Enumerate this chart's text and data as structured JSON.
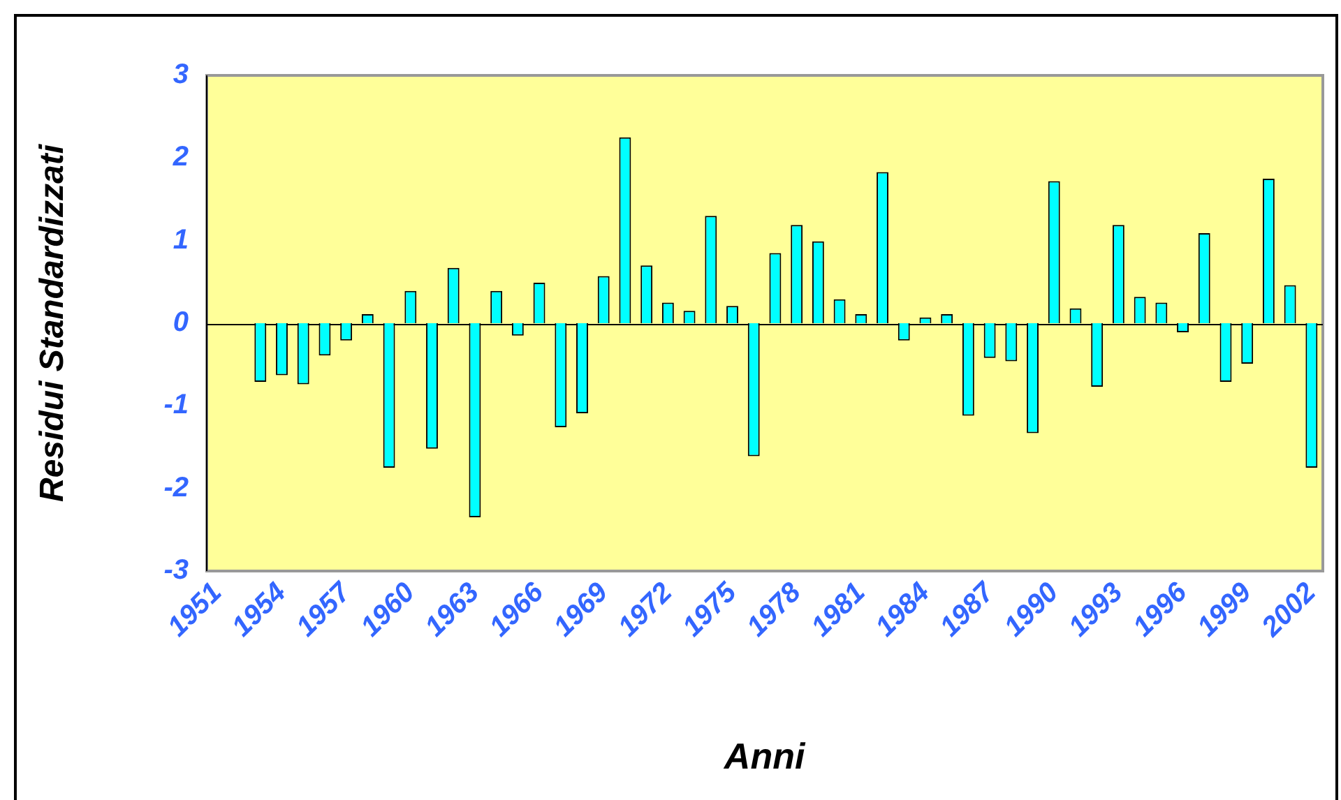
{
  "chart_data": {
    "type": "bar",
    "xlabel": "Anni",
    "ylabel": "Residui Standardizzati",
    "categories": [
      "1951",
      null,
      null,
      "1954",
      null,
      null,
      "1957",
      null,
      null,
      "1960",
      null,
      null,
      "1963",
      null,
      null,
      "1966",
      null,
      null,
      "1969",
      null,
      null,
      "1972",
      null,
      null,
      "1975",
      null,
      null,
      "1978",
      null,
      null,
      "1981",
      null,
      null,
      "1984",
      null,
      null,
      "1987",
      null,
      null,
      "1990",
      null,
      null,
      "1993",
      null,
      null,
      "1996",
      null,
      null,
      "1999",
      null,
      null,
      "2002"
    ],
    "values": [
      null,
      null,
      -0.71,
      -0.63,
      -0.74,
      -0.39,
      -0.21,
      0.11,
      -1.75,
      0.39,
      -1.52,
      0.67,
      -2.35,
      0.39,
      -0.15,
      0.49,
      -1.26,
      -1.09,
      0.57,
      2.25,
      0.7,
      0.25,
      0.15,
      1.3,
      0.21,
      -1.61,
      0.85,
      1.19,
      0.99,
      0.29,
      0.11,
      1.83,
      -0.21,
      0.07,
      0.11,
      -1.12,
      -0.42,
      -0.46,
      -1.33,
      1.72,
      0.18,
      -0.77,
      1.19,
      0.32,
      0.25,
      -0.11,
      1.09,
      -0.71,
      -0.49,
      1.75,
      0.46,
      -1.75
    ],
    "color": "#00ffff",
    "ylim": [
      -3,
      3
    ],
    "yticks": [
      -3,
      -2,
      -1,
      0,
      1,
      2,
      3
    ],
    "grid": false,
    "legend": false
  }
}
